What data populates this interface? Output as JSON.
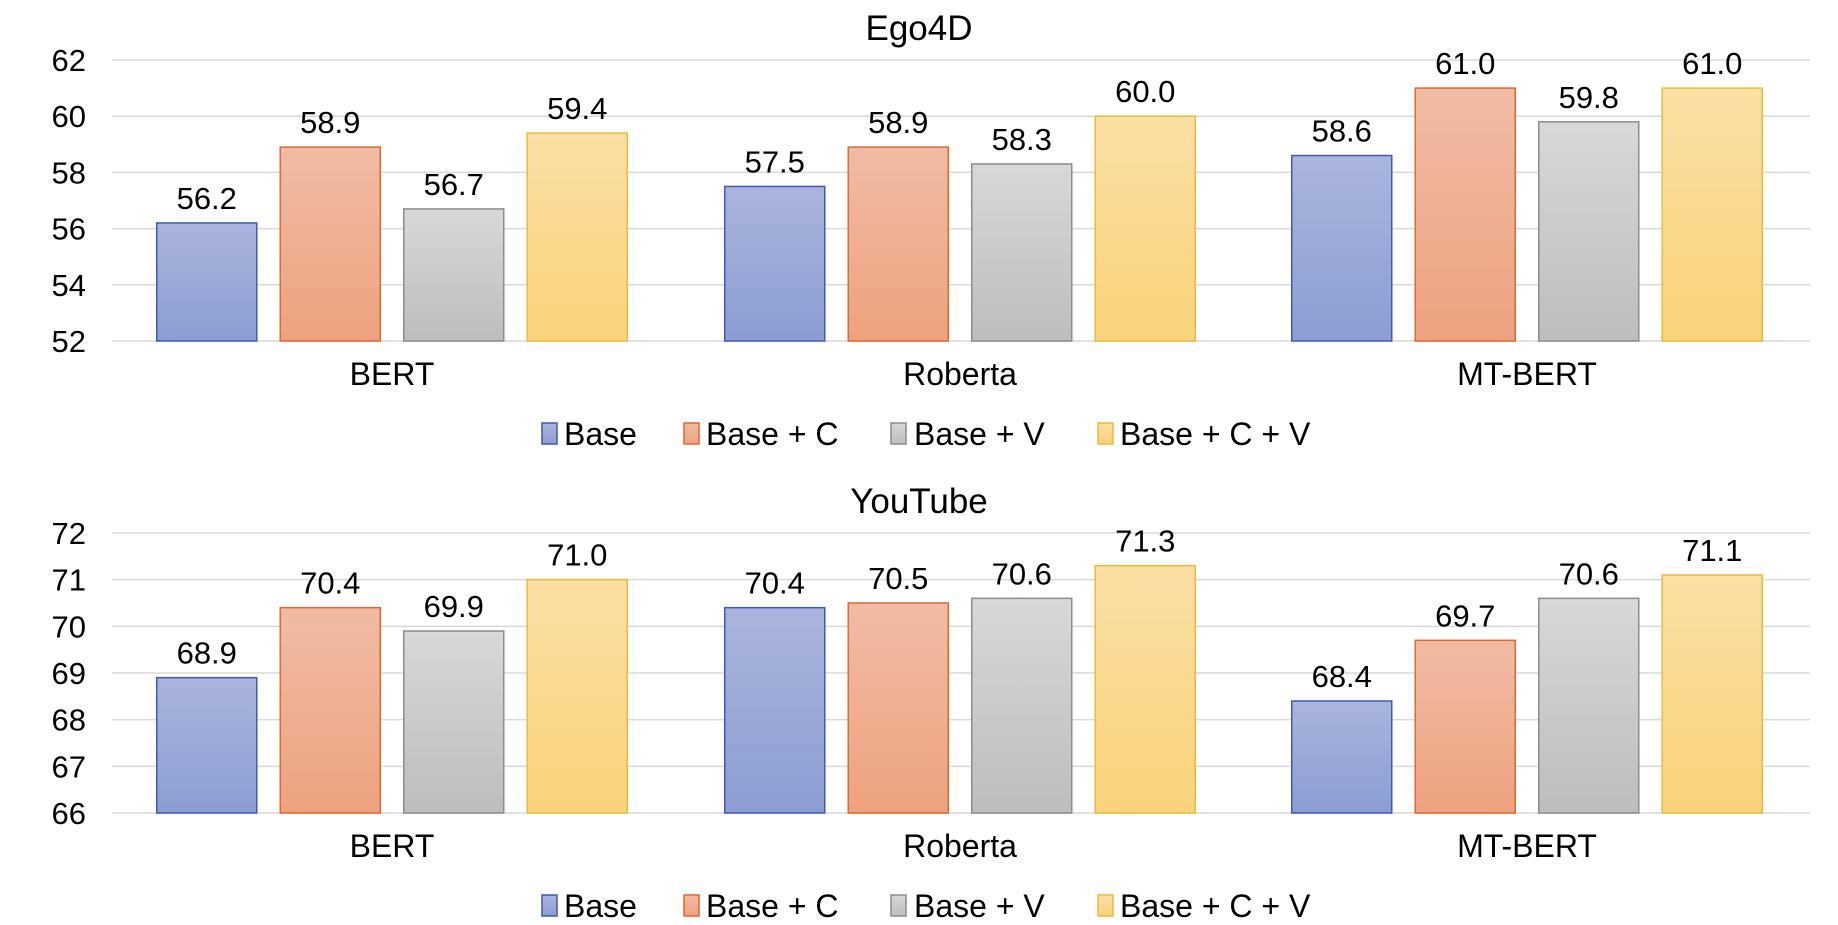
{
  "chart_data": [
    {
      "type": "bar",
      "title": "Ego4D",
      "categories": [
        "BERT",
        "Roberta",
        "MT-BERT"
      ],
      "ylim": [
        52,
        62
      ],
      "yticks": [
        52,
        54,
        56,
        58,
        60,
        62
      ],
      "ytick_labels": [
        "52",
        "54",
        "56",
        "58",
        "60",
        "62"
      ],
      "grid": true,
      "legend_position": "bottom",
      "series": [
        {
          "name": "Base",
          "values": [
            56.2,
            57.5,
            58.6
          ],
          "labels": [
            "56.2",
            "57.5",
            "58.6"
          ]
        },
        {
          "name": "Base + C",
          "values": [
            58.9,
            58.9,
            61.0
          ],
          "labels": [
            "58.9",
            "58.9",
            "61.0"
          ]
        },
        {
          "name": "Base + V",
          "values": [
            56.7,
            58.3,
            59.8
          ],
          "labels": [
            "56.7",
            "58.3",
            "59.8"
          ]
        },
        {
          "name": "Base + C + V",
          "values": [
            59.4,
            60.0,
            61.0
          ],
          "labels": [
            "59.4",
            "60.0",
            "61.0"
          ]
        }
      ]
    },
    {
      "type": "bar",
      "title": "YouTube",
      "categories": [
        "BERT",
        "Roberta",
        "MT-BERT"
      ],
      "ylim": [
        66,
        72
      ],
      "yticks": [
        66,
        67,
        68,
        69,
        70,
        71,
        72
      ],
      "ytick_labels": [
        "66",
        "67",
        "68",
        "69",
        "70",
        "71",
        "72"
      ],
      "grid": true,
      "legend_position": "bottom",
      "series": [
        {
          "name": "Base",
          "values": [
            68.9,
            70.4,
            68.4
          ],
          "labels": [
            "68.9",
            "70.4",
            "68.4"
          ]
        },
        {
          "name": "Base + C",
          "values": [
            70.4,
            70.5,
            69.7
          ],
          "labels": [
            "70.4",
            "70.5",
            "69.7"
          ]
        },
        {
          "name": "Base + V",
          "values": [
            69.9,
            70.6,
            70.6
          ],
          "labels": [
            "69.9",
            "70.6",
            "70.6"
          ]
        },
        {
          "name": "Base + C + V",
          "values": [
            71.0,
            71.3,
            71.1
          ],
          "labels": [
            "71.0",
            "71.3",
            "71.1"
          ]
        }
      ]
    }
  ],
  "colors": {
    "series_fill_top": [
      "#aab5dc",
      "#f0bca4",
      "#d8d8d8",
      "#fbdfa4"
    ],
    "series_fill_bottom": [
      "#8b9dd2",
      "#eea27f",
      "#bdbdbd",
      "#f9d37a"
    ],
    "series_stroke": [
      "#3f59b4",
      "#e3672f",
      "#8c8c8c",
      "#f2b838"
    ],
    "grid": "#d9d9d9",
    "text": "#000000"
  }
}
